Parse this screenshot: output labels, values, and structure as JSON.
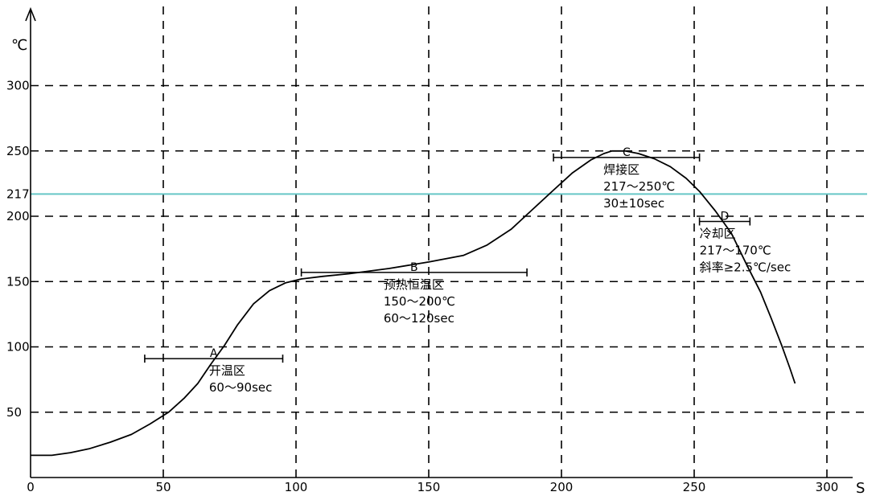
{
  "chart_data": {
    "type": "line",
    "title": "",
    "xlabel": "S",
    "ylabel": "℃",
    "xlim": [
      0,
      325
    ],
    "ylim": [
      0,
      325
    ],
    "x_ticks": [
      "0",
      "50",
      "100",
      "150",
      "200",
      "250",
      "300"
    ],
    "x_tick_values": [
      0,
      50,
      100,
      150,
      200,
      250,
      300
    ],
    "y_ticks": [
      "50",
      "100",
      "150",
      "200",
      "217",
      "250",
      "300"
    ],
    "y_tick_values": [
      50,
      100,
      150,
      200,
      217,
      250,
      300
    ],
    "grid": true,
    "grid_style": "dashed",
    "reference_line": {
      "y": 217,
      "color": "#66c6c6"
    },
    "curve_color": "#000000",
    "series": [
      {
        "x": [
          0,
          8,
          15,
          22,
          30,
          38,
          45,
          52,
          58,
          63,
          68,
          73,
          78,
          84,
          90,
          96,
          102,
          110,
          120,
          135,
          150,
          163,
          172,
          181,
          189,
          197,
          204,
          211,
          216,
          219,
          224,
          229,
          235,
          241,
          247,
          252,
          258,
          264,
          270,
          275,
          279,
          283,
          286,
          288
        ],
        "y": [
          17,
          17,
          19,
          22,
          27,
          33,
          41,
          50,
          61,
          72,
          87,
          101,
          117,
          133,
          143,
          149,
          152,
          154,
          156,
          160,
          165,
          170,
          178,
          190,
          205,
          220,
          233,
          243,
          248,
          250,
          250,
          248,
          244,
          238,
          229,
          219,
          204,
          187,
          162,
          142,
          122,
          101,
          84,
          72
        ]
      }
    ],
    "zones": [
      {
        "letter": "A",
        "x_start": 43,
        "x_end": 95,
        "y": 91,
        "lines": [
          "开温区",
          "60～90sec"
        ]
      },
      {
        "letter": "B",
        "x_start": 102,
        "x_end": 187,
        "y": 157,
        "lines": [
          "预热恒温区",
          "150～200℃",
          "60～120sec"
        ]
      },
      {
        "letter": "C",
        "x_start": 197,
        "x_end": 252,
        "y": 245,
        "lines": [
          "焊接区",
          "217～250℃",
          "30±10sec"
        ]
      },
      {
        "letter": "D",
        "x_start": 252,
        "x_end": 271,
        "y": 196,
        "lines": [
          "冷却区",
          "217～170℃",
          "斜率≥2.5℃/sec"
        ]
      }
    ]
  }
}
